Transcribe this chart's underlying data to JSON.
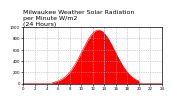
{
  "title": "Milwaukee Weather Solar Radiation\nper Minute W/m2\n(24 Hours)",
  "title_fontsize": 4.5,
  "background_color": "#ffffff",
  "fill_color": "#ff0000",
  "line_color": "#cc0000",
  "grid_color": "#aaaaaa",
  "tick_fontsize": 2.8,
  "xlim": [
    0,
    1440
  ],
  "ylim": [
    0,
    1000
  ],
  "peak_x": 780,
  "peak_y": 950,
  "sigma": 170,
  "n_points": 1440,
  "xtick_step": 120,
  "ytick_step": 200,
  "vlines": [
    720,
    840
  ]
}
